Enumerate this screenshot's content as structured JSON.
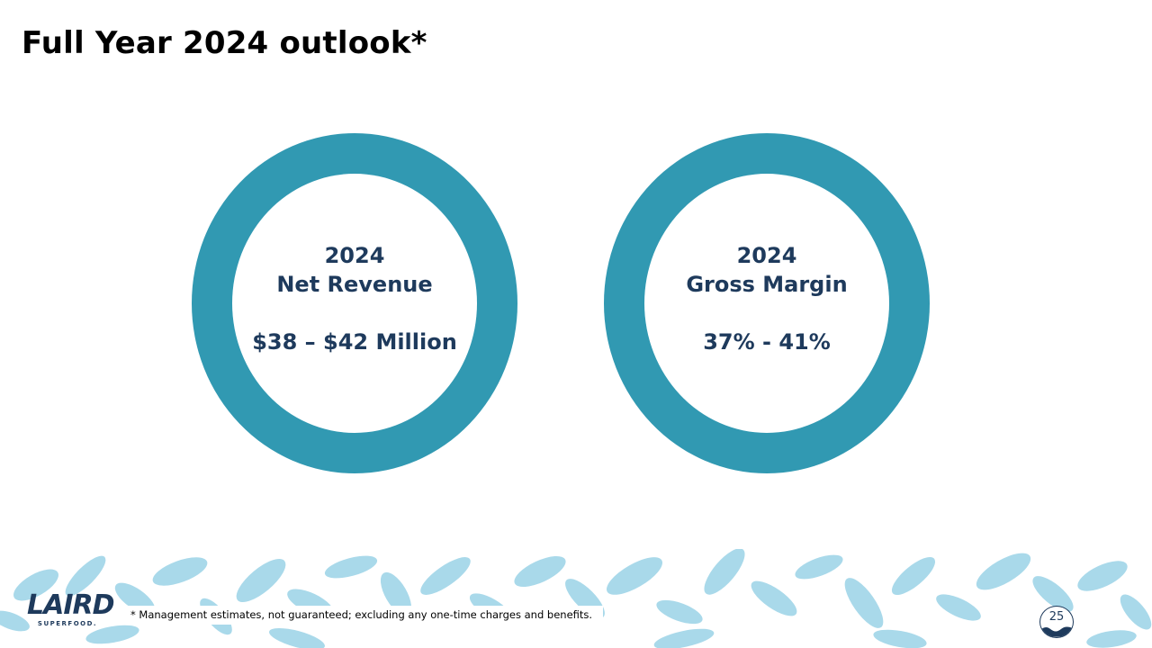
{
  "title": "Full Year 2024 outlook*",
  "metrics": [
    {
      "year": "2024",
      "label": "Net Revenue",
      "value": "$38 – $42 Million"
    },
    {
      "year": "2024",
      "label": "Gross Margin",
      "value": "37% - 41%"
    }
  ],
  "footnote": "* Management estimates, not guaranteed; excluding any one-time charges and benefits.",
  "logo": {
    "name": "LAIRD",
    "sub": "SUPERFOOD."
  },
  "page_number": "25",
  "colors": {
    "ring": "#3199b2",
    "navy": "#1e3a5c",
    "foliage": "#a9d9ea"
  },
  "icons": [
    "leaf-pattern-icon",
    "wave-icon"
  ]
}
